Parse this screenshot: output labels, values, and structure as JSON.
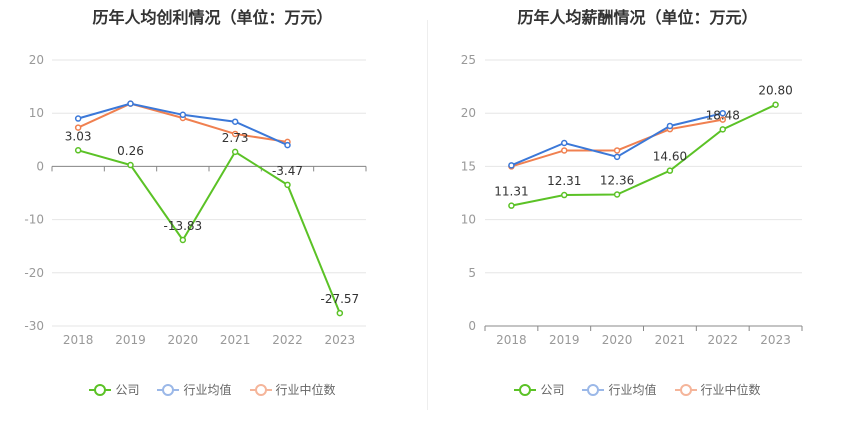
{
  "charts": {
    "left": {
      "title": "历年人均创利情况（单位：万元）"
    },
    "right": {
      "title": "历年人均薪酬情况（单位：万元）"
    }
  },
  "legend": {
    "company": "公司",
    "industry_avg": "行业均值",
    "industry_median": "行业中位数"
  },
  "colors": {
    "company": "#5bc226",
    "industry_avg": "#3b78d8",
    "industry_median": "#f08050",
    "grid": "#e6e6e6",
    "axis": "#999999"
  },
  "chart_data": [
    {
      "type": "line",
      "title": "历年人均创利情况（单位：万元）",
      "categories": [
        "2018",
        "2019",
        "2020",
        "2021",
        "2022",
        "2023"
      ],
      "ylim": [
        -30,
        20
      ],
      "yticks": [
        -30,
        -20,
        -10,
        0,
        10,
        20
      ],
      "grid": true,
      "legend_position": "bottom",
      "series": [
        {
          "name": "公司",
          "values": [
            3.03,
            0.26,
            -13.83,
            2.73,
            -3.47,
            -27.57
          ],
          "labels": [
            "3.03",
            "0.26",
            "-13.83",
            "2.73",
            "-3.47",
            "-27.57"
          ]
        },
        {
          "name": "行业均值",
          "values": [
            9.0,
            11.8,
            9.7,
            8.4,
            4.0,
            null
          ]
        },
        {
          "name": "行业中位数",
          "values": [
            7.3,
            11.8,
            9.1,
            6.1,
            4.6,
            null
          ]
        }
      ]
    },
    {
      "type": "line",
      "title": "历年人均薪酬情况（单位：万元）",
      "categories": [
        "2018",
        "2019",
        "2020",
        "2021",
        "2022",
        "2023"
      ],
      "ylim": [
        0,
        25
      ],
      "yticks": [
        0,
        5,
        10,
        15,
        20,
        25
      ],
      "grid": true,
      "legend_position": "bottom",
      "series": [
        {
          "name": "公司",
          "values": [
            11.31,
            12.31,
            12.36,
            14.6,
            18.48,
            20.8
          ],
          "labels": [
            "11.31",
            "12.31",
            "12.36",
            "14.60",
            "18.48",
            "20.80"
          ]
        },
        {
          "name": "行业均值",
          "values": [
            15.1,
            17.2,
            15.9,
            18.8,
            20.0,
            null
          ]
        },
        {
          "name": "行业中位数",
          "values": [
            15.0,
            16.5,
            16.5,
            18.5,
            19.4,
            null
          ]
        }
      ]
    }
  ]
}
